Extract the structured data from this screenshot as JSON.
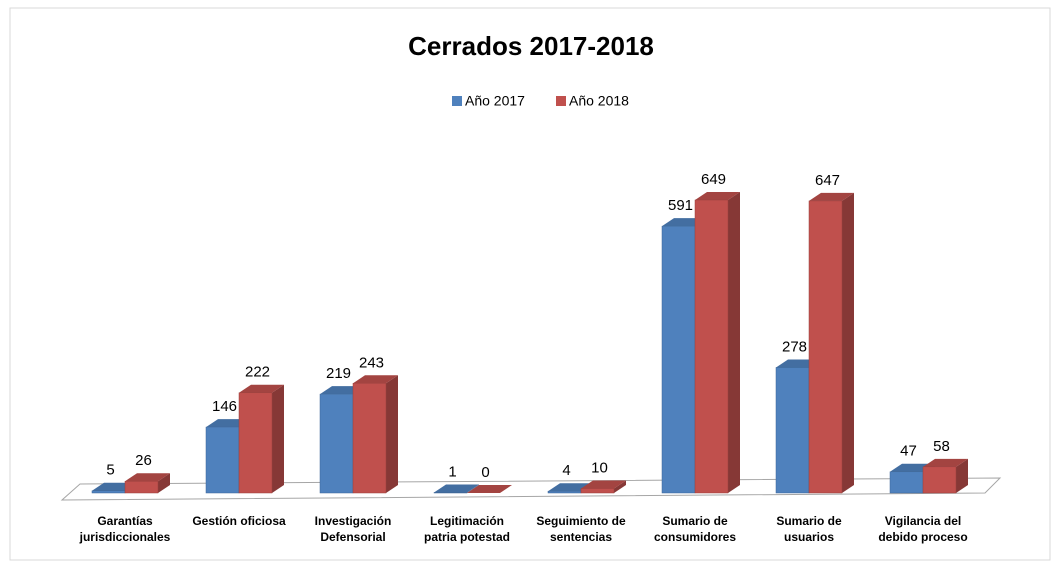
{
  "chart_data": {
    "type": "bar3d",
    "title": "Cerrados 2017-2018",
    "categories": [
      "Garantías\njurisdiccionales",
      "Gestión oficiosa",
      "Investigación\nDefensorial",
      "Legitimación\npatria potestad",
      "Seguimiento de\nsentencias",
      "Sumario de\nconsumidores",
      "Sumario de\nusuarios",
      "Vigilancia del\ndebido proceso"
    ],
    "series": [
      {
        "name": "Año 2017",
        "color": "#4f81bd",
        "values": [
          5,
          146,
          219,
          1,
          4,
          591,
          278,
          47
        ]
      },
      {
        "name": "Año 2018",
        "color": "#c0504d",
        "values": [
          26,
          222,
          243,
          0,
          10,
          649,
          647,
          58
        ]
      }
    ],
    "legend": "top"
  }
}
